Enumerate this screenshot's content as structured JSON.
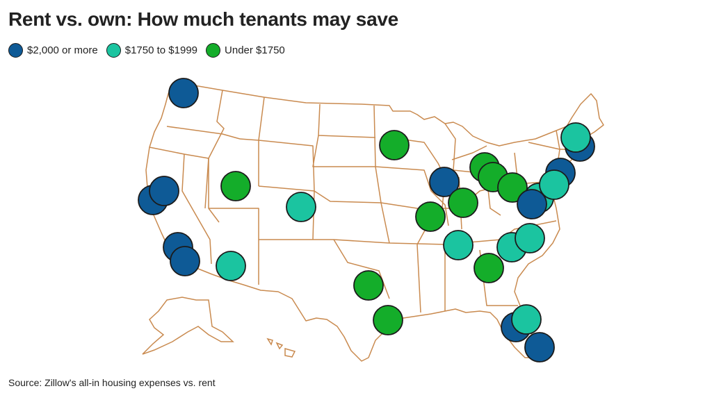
{
  "title": "Rent vs. own: How much tenants may save",
  "legend": [
    {
      "label": "$2,000 or more",
      "color": "#0e5a96"
    },
    {
      "label": "$1750 to $1999",
      "color": "#1bc4a0"
    },
    {
      "label": "Under $1750",
      "color": "#14ad2a"
    }
  ],
  "source": "Source: Zillow's all-in housing expenses vs. rent",
  "colors": {
    "state_border": "#c98a4f",
    "marker_stroke": "#1b1b1b",
    "background": "#ffffff"
  },
  "markers": [
    {
      "region": "Seattle, WA",
      "category": 0
    },
    {
      "region": "San Francisco Bay Area, CA",
      "category": 0
    },
    {
      "region": "San Jose, CA",
      "category": 0
    },
    {
      "region": "Los Angeles, CA",
      "category": 0
    },
    {
      "region": "San Diego, CA",
      "category": 0
    },
    {
      "region": "Salt Lake City, UT",
      "category": 2
    },
    {
      "region": "Denver, CO",
      "category": 1
    },
    {
      "region": "Phoenix, AZ",
      "category": 1
    },
    {
      "region": "Minneapolis, MN",
      "category": 2
    },
    {
      "region": "Chicago, IL",
      "category": 0
    },
    {
      "region": "St. Louis, MO",
      "category": 2
    },
    {
      "region": "Indianapolis, IN",
      "category": 2
    },
    {
      "region": "Detroit, MI",
      "category": 2
    },
    {
      "region": "Cleveland, OH",
      "category": 2
    },
    {
      "region": "Pittsburgh, PA",
      "category": 2
    },
    {
      "region": "Boston, MA",
      "category": 0
    },
    {
      "region": "Providence, RI",
      "category": 1
    },
    {
      "region": "New York, NY",
      "category": 0
    },
    {
      "region": "Philadelphia, PA",
      "category": 1
    },
    {
      "region": "Washington, DC",
      "category": 0
    },
    {
      "region": "Baltimore, MD",
      "category": 1
    },
    {
      "region": "Nashville, TN",
      "category": 1
    },
    {
      "region": "Charlotte, NC",
      "category": 1
    },
    {
      "region": "Raleigh, NC",
      "category": 2
    },
    {
      "region": "Atlanta, GA",
      "category": 1
    },
    {
      "region": "Dallas, TX",
      "category": 2
    },
    {
      "region": "Houston, TX",
      "category": 2
    },
    {
      "region": "Tampa, FL",
      "category": 0
    },
    {
      "region": "Orlando, FL",
      "category": 1
    },
    {
      "region": "Miami, FL",
      "category": 0
    }
  ]
}
